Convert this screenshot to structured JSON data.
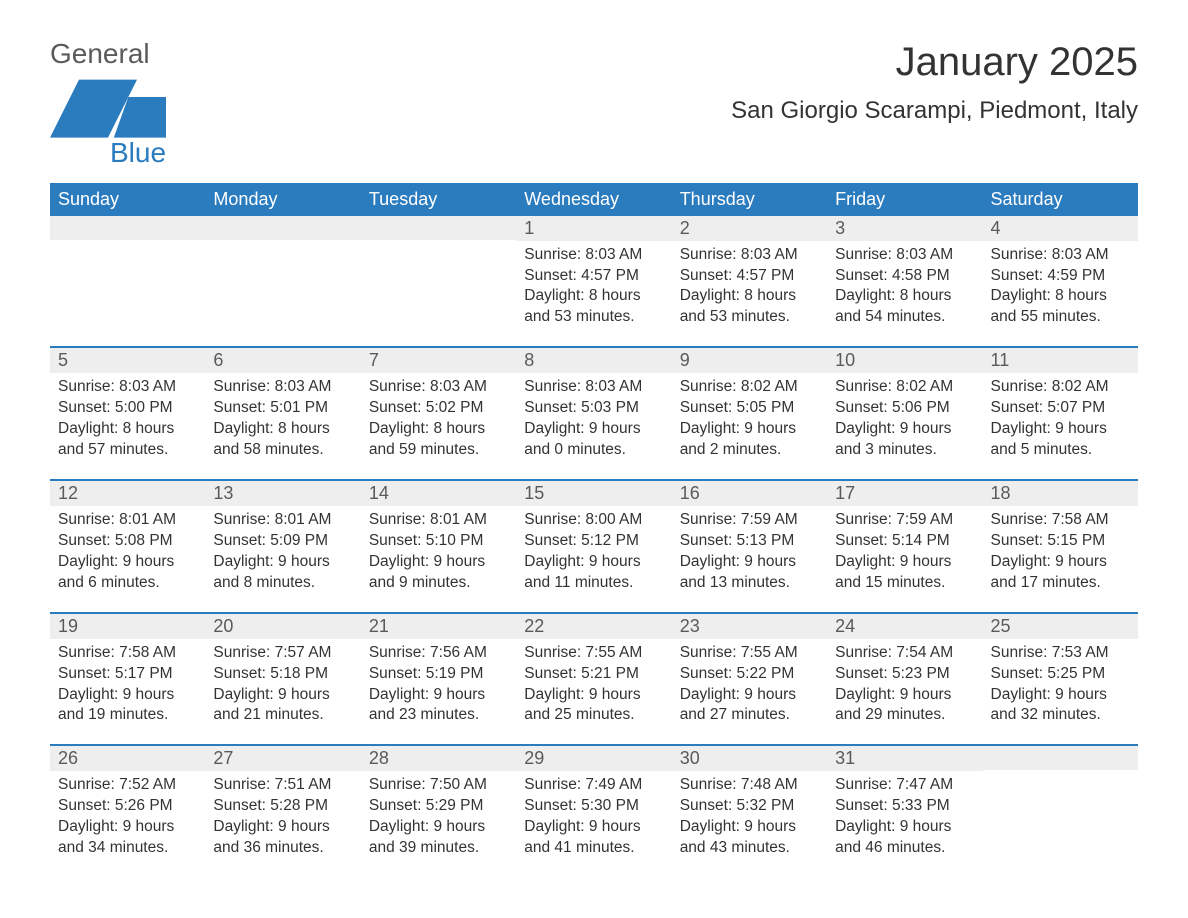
{
  "brand": {
    "general": "General",
    "blue": "Blue",
    "flag_color": "#2b7bbf"
  },
  "title": "January 2025",
  "location": "San Giorgio Scarampi, Piedmont, Italy",
  "colors": {
    "header_bg": "#2b7bbf",
    "header_text": "#ffffff",
    "daynum_bg": "#eeeeee",
    "daynum_text": "#5a5a5a",
    "body_text": "#333333",
    "week_border": "#2b7bbf",
    "page_bg": "#ffffff"
  },
  "day_headers": [
    "Sunday",
    "Monday",
    "Tuesday",
    "Wednesday",
    "Thursday",
    "Friday",
    "Saturday"
  ],
  "weeks": [
    [
      null,
      null,
      null,
      {
        "n": "1",
        "sunrise": "8:03 AM",
        "sunset": "4:57 PM",
        "daylight_l1": "Daylight: 8 hours",
        "daylight_l2": "and 53 minutes."
      },
      {
        "n": "2",
        "sunrise": "8:03 AM",
        "sunset": "4:57 PM",
        "daylight_l1": "Daylight: 8 hours",
        "daylight_l2": "and 53 minutes."
      },
      {
        "n": "3",
        "sunrise": "8:03 AM",
        "sunset": "4:58 PM",
        "daylight_l1": "Daylight: 8 hours",
        "daylight_l2": "and 54 minutes."
      },
      {
        "n": "4",
        "sunrise": "8:03 AM",
        "sunset": "4:59 PM",
        "daylight_l1": "Daylight: 8 hours",
        "daylight_l2": "and 55 minutes."
      }
    ],
    [
      {
        "n": "5",
        "sunrise": "8:03 AM",
        "sunset": "5:00 PM",
        "daylight_l1": "Daylight: 8 hours",
        "daylight_l2": "and 57 minutes."
      },
      {
        "n": "6",
        "sunrise": "8:03 AM",
        "sunset": "5:01 PM",
        "daylight_l1": "Daylight: 8 hours",
        "daylight_l2": "and 58 minutes."
      },
      {
        "n": "7",
        "sunrise": "8:03 AM",
        "sunset": "5:02 PM",
        "daylight_l1": "Daylight: 8 hours",
        "daylight_l2": "and 59 minutes."
      },
      {
        "n": "8",
        "sunrise": "8:03 AM",
        "sunset": "5:03 PM",
        "daylight_l1": "Daylight: 9 hours",
        "daylight_l2": "and 0 minutes."
      },
      {
        "n": "9",
        "sunrise": "8:02 AM",
        "sunset": "5:05 PM",
        "daylight_l1": "Daylight: 9 hours",
        "daylight_l2": "and 2 minutes."
      },
      {
        "n": "10",
        "sunrise": "8:02 AM",
        "sunset": "5:06 PM",
        "daylight_l1": "Daylight: 9 hours",
        "daylight_l2": "and 3 minutes."
      },
      {
        "n": "11",
        "sunrise": "8:02 AM",
        "sunset": "5:07 PM",
        "daylight_l1": "Daylight: 9 hours",
        "daylight_l2": "and 5 minutes."
      }
    ],
    [
      {
        "n": "12",
        "sunrise": "8:01 AM",
        "sunset": "5:08 PM",
        "daylight_l1": "Daylight: 9 hours",
        "daylight_l2": "and 6 minutes."
      },
      {
        "n": "13",
        "sunrise": "8:01 AM",
        "sunset": "5:09 PM",
        "daylight_l1": "Daylight: 9 hours",
        "daylight_l2": "and 8 minutes."
      },
      {
        "n": "14",
        "sunrise": "8:01 AM",
        "sunset": "5:10 PM",
        "daylight_l1": "Daylight: 9 hours",
        "daylight_l2": "and 9 minutes."
      },
      {
        "n": "15",
        "sunrise": "8:00 AM",
        "sunset": "5:12 PM",
        "daylight_l1": "Daylight: 9 hours",
        "daylight_l2": "and 11 minutes."
      },
      {
        "n": "16",
        "sunrise": "7:59 AM",
        "sunset": "5:13 PM",
        "daylight_l1": "Daylight: 9 hours",
        "daylight_l2": "and 13 minutes."
      },
      {
        "n": "17",
        "sunrise": "7:59 AM",
        "sunset": "5:14 PM",
        "daylight_l1": "Daylight: 9 hours",
        "daylight_l2": "and 15 minutes."
      },
      {
        "n": "18",
        "sunrise": "7:58 AM",
        "sunset": "5:15 PM",
        "daylight_l1": "Daylight: 9 hours",
        "daylight_l2": "and 17 minutes."
      }
    ],
    [
      {
        "n": "19",
        "sunrise": "7:58 AM",
        "sunset": "5:17 PM",
        "daylight_l1": "Daylight: 9 hours",
        "daylight_l2": "and 19 minutes."
      },
      {
        "n": "20",
        "sunrise": "7:57 AM",
        "sunset": "5:18 PM",
        "daylight_l1": "Daylight: 9 hours",
        "daylight_l2": "and 21 minutes."
      },
      {
        "n": "21",
        "sunrise": "7:56 AM",
        "sunset": "5:19 PM",
        "daylight_l1": "Daylight: 9 hours",
        "daylight_l2": "and 23 minutes."
      },
      {
        "n": "22",
        "sunrise": "7:55 AM",
        "sunset": "5:21 PM",
        "daylight_l1": "Daylight: 9 hours",
        "daylight_l2": "and 25 minutes."
      },
      {
        "n": "23",
        "sunrise": "7:55 AM",
        "sunset": "5:22 PM",
        "daylight_l1": "Daylight: 9 hours",
        "daylight_l2": "and 27 minutes."
      },
      {
        "n": "24",
        "sunrise": "7:54 AM",
        "sunset": "5:23 PM",
        "daylight_l1": "Daylight: 9 hours",
        "daylight_l2": "and 29 minutes."
      },
      {
        "n": "25",
        "sunrise": "7:53 AM",
        "sunset": "5:25 PM",
        "daylight_l1": "Daylight: 9 hours",
        "daylight_l2": "and 32 minutes."
      }
    ],
    [
      {
        "n": "26",
        "sunrise": "7:52 AM",
        "sunset": "5:26 PM",
        "daylight_l1": "Daylight: 9 hours",
        "daylight_l2": "and 34 minutes."
      },
      {
        "n": "27",
        "sunrise": "7:51 AM",
        "sunset": "5:28 PM",
        "daylight_l1": "Daylight: 9 hours",
        "daylight_l2": "and 36 minutes."
      },
      {
        "n": "28",
        "sunrise": "7:50 AM",
        "sunset": "5:29 PM",
        "daylight_l1": "Daylight: 9 hours",
        "daylight_l2": "and 39 minutes."
      },
      {
        "n": "29",
        "sunrise": "7:49 AM",
        "sunset": "5:30 PM",
        "daylight_l1": "Daylight: 9 hours",
        "daylight_l2": "and 41 minutes."
      },
      {
        "n": "30",
        "sunrise": "7:48 AM",
        "sunset": "5:32 PM",
        "daylight_l1": "Daylight: 9 hours",
        "daylight_l2": "and 43 minutes."
      },
      {
        "n": "31",
        "sunrise": "7:47 AM",
        "sunset": "5:33 PM",
        "daylight_l1": "Daylight: 9 hours",
        "daylight_l2": "and 46 minutes."
      },
      null
    ]
  ],
  "labels": {
    "sunrise_prefix": "Sunrise: ",
    "sunset_prefix": "Sunset: "
  }
}
